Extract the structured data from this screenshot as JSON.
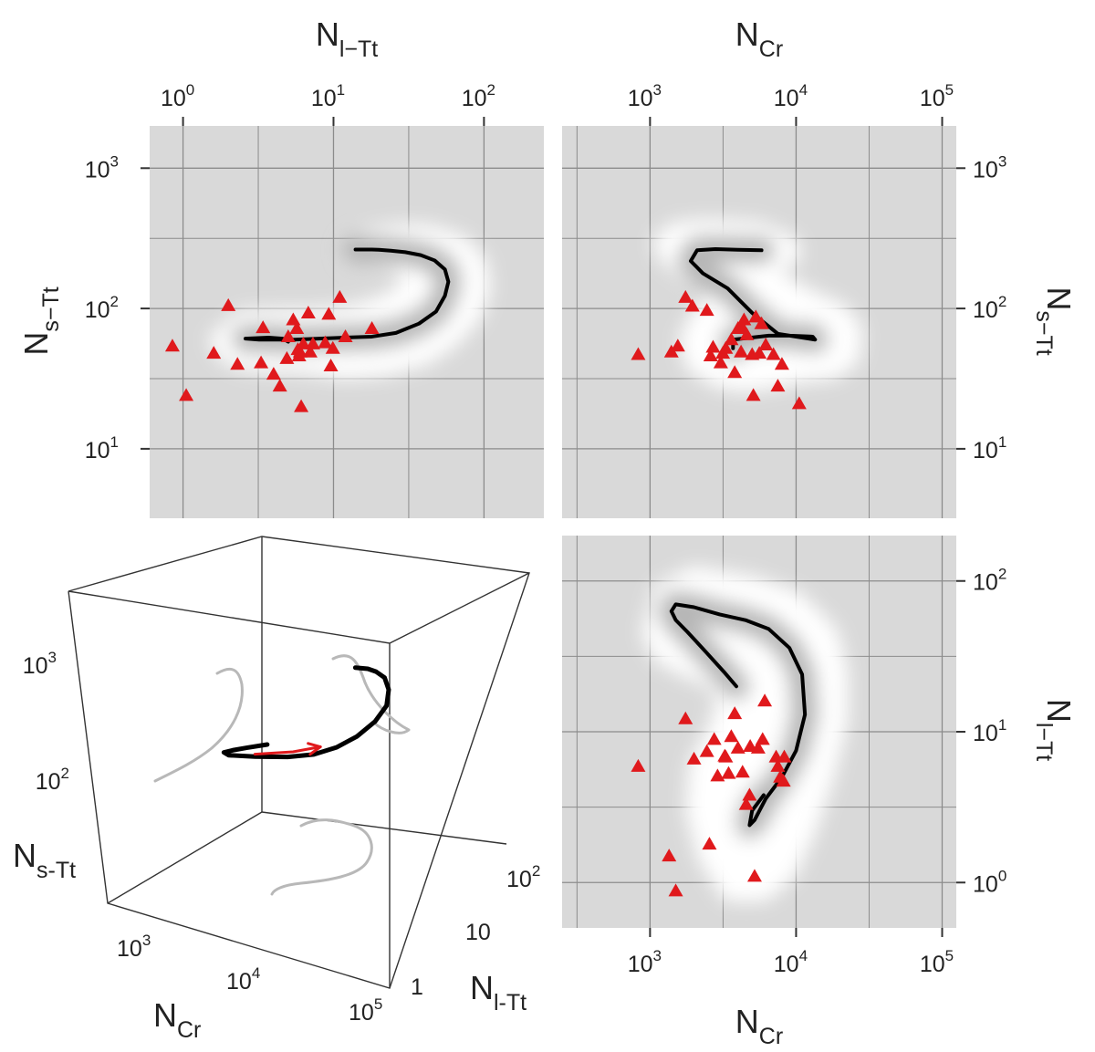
{
  "figure": {
    "panels": {
      "top_left": {
        "top_title": {
          "main": "N",
          "sub": "l−Tt"
        },
        "left_title": {
          "main": "N",
          "sub": "s−Tt"
        }
      },
      "top_right": {
        "top_title": {
          "main": "N",
          "sub": "Cr"
        },
        "right_title": {
          "main": "N",
          "sub": "s−Tt"
        }
      },
      "bottom_right": {
        "bottom_title": {
          "main": "N",
          "sub": "Cr"
        },
        "right_title": {
          "main": "N",
          "sub": "l−Tt"
        }
      },
      "cube": {
        "vertical_axis": {
          "main": "N",
          "sub": "s-Tt",
          "ticks": [
            {
              "base": "10",
              "exp": "3"
            },
            {
              "base": "10",
              "exp": "2"
            }
          ]
        },
        "left_axis": {
          "main": "N",
          "sub": "Cr",
          "ticks": [
            {
              "base": "10",
              "exp": "3"
            },
            {
              "base": "10",
              "exp": "4"
            },
            {
              "base": "10",
              "exp": "5"
            }
          ]
        },
        "right_axis": {
          "main": "N",
          "sub": "l-Tt",
          "ticks": [
            {
              "base": "1",
              "exp": ""
            },
            {
              "base": "10",
              "exp": ""
            },
            {
              "base": "10",
              "exp": "2"
            }
          ]
        }
      }
    }
  },
  "chart_data": [
    {
      "id": "nlTt_vs_nsTt",
      "type": "scatter",
      "x_label": "N_l−Tt",
      "y_label": "N_s−Tt",
      "x_scale": "log",
      "y_scale": "log",
      "xlim": [
        0.6,
        250
      ],
      "ylim": [
        3.2,
        2000
      ],
      "x_ticks": [
        {
          "base": "10",
          "exp": "0",
          "value": 1
        },
        {
          "base": "10",
          "exp": "1",
          "value": 10
        },
        {
          "base": "10",
          "exp": "2",
          "value": 100
        }
      ],
      "y_ticks": [
        {
          "base": "10",
          "exp": "1",
          "value": 10
        },
        {
          "base": "10",
          "exp": "2",
          "value": 100
        },
        {
          "base": "10",
          "exp": "3",
          "value": 1000
        }
      ],
      "grid": true,
      "background": "#d9d9d9",
      "marker_color": "#e0191c",
      "line_color": "#000000",
      "points": [
        [
          0.85,
          54
        ],
        [
          2.0,
          105
        ],
        [
          1.05,
          24
        ],
        [
          1.6,
          48
        ],
        [
          2.3,
          40
        ],
        [
          3.3,
          41
        ],
        [
          3.4,
          73
        ],
        [
          4.0,
          34
        ],
        [
          4.4,
          28
        ],
        [
          4.9,
          44
        ],
        [
          5.0,
          63
        ],
        [
          5.4,
          83
        ],
        [
          5.7,
          72
        ],
        [
          5.8,
          51
        ],
        [
          5.9,
          46
        ],
        [
          6.0,
          49
        ],
        [
          6.1,
          20
        ],
        [
          6.3,
          56
        ],
        [
          6.8,
          93
        ],
        [
          7.0,
          49
        ],
        [
          7.3,
          56
        ],
        [
          8.8,
          57
        ],
        [
          9.3,
          91
        ],
        [
          9.6,
          39
        ],
        [
          9.9,
          52
        ],
        [
          11,
          120
        ],
        [
          12,
          63
        ],
        [
          18,
          72
        ]
      ],
      "curve": [
        [
          5.0,
          58
        ],
        [
          4.6,
          61
        ],
        [
          3.7,
          62
        ],
        [
          2.6,
          61
        ],
        [
          3.2,
          60
        ],
        [
          4.0,
          60
        ],
        [
          5.5,
          60
        ],
        [
          8,
          61
        ],
        [
          12,
          62
        ],
        [
          18,
          63
        ],
        [
          26,
          67
        ],
        [
          37,
          78
        ],
        [
          48,
          95
        ],
        [
          55,
          123
        ],
        [
          58,
          155
        ],
        [
          55,
          190
        ],
        [
          47,
          220
        ],
        [
          38,
          240
        ],
        [
          30,
          252
        ],
        [
          24,
          258
        ],
        [
          20,
          262
        ],
        [
          18,
          263
        ],
        [
          14,
          263
        ]
      ],
      "band": [
        [
          1.7,
          60
        ],
        [
          2.5,
          84
        ],
        [
          4,
          86
        ],
        [
          8,
          87
        ],
        [
          14,
          93
        ],
        [
          22,
          109
        ],
        [
          30,
          133
        ],
        [
          33,
          172
        ],
        [
          26,
          220
        ],
        [
          18,
          238
        ],
        [
          13,
          242
        ],
        [
          13,
          280
        ],
        [
          19,
          328
        ],
        [
          30,
          350
        ],
        [
          45,
          340
        ],
        [
          70,
          290
        ],
        [
          92,
          210
        ],
        [
          98,
          140
        ],
        [
          85,
          90
        ],
        [
          60,
          60
        ],
        [
          40,
          45
        ],
        [
          22,
          38
        ],
        [
          12,
          36
        ],
        [
          6,
          40
        ],
        [
          4,
          40
        ],
        [
          2.5,
          42
        ],
        [
          1.9,
          48
        ]
      ]
    },
    {
      "id": "nCr_vs_nsTt",
      "type": "scatter",
      "x_label": "N_Cr",
      "y_label": "N_s−Tt",
      "x_scale": "log",
      "y_scale": "log",
      "xlim": [
        250,
        125000
      ],
      "ylim": [
        3.2,
        2000
      ],
      "x_ticks": [
        {
          "base": "10",
          "exp": "3",
          "value": 1000
        },
        {
          "base": "10",
          "exp": "4",
          "value": 10000
        },
        {
          "base": "10",
          "exp": "5",
          "value": 100000
        }
      ],
      "y_ticks": [
        {
          "base": "10",
          "exp": "1",
          "value": 10
        },
        {
          "base": "10",
          "exp": "2",
          "value": 100
        },
        {
          "base": "10",
          "exp": "3",
          "value": 1000
        }
      ],
      "grid": true,
      "background": "#d9d9d9",
      "marker_color": "#e0191c",
      "line_color": "#000000",
      "points": [
        [
          830,
          47
        ],
        [
          1400,
          49
        ],
        [
          1550,
          54
        ],
        [
          1750,
          120
        ],
        [
          1950,
          104
        ],
        [
          2450,
          97
        ],
        [
          2600,
          46
        ],
        [
          2700,
          53
        ],
        [
          3050,
          41
        ],
        [
          3150,
          48
        ],
        [
          3300,
          52
        ],
        [
          3600,
          60
        ],
        [
          3800,
          35
        ],
        [
          4000,
          72
        ],
        [
          4200,
          49
        ],
        [
          4300,
          73
        ],
        [
          4400,
          83
        ],
        [
          4600,
          65
        ],
        [
          5000,
          47
        ],
        [
          5100,
          24
        ],
        [
          5300,
          87
        ],
        [
          5600,
          48
        ],
        [
          5800,
          78
        ],
        [
          6200,
          55
        ],
        [
          7000,
          47
        ],
        [
          7500,
          28
        ],
        [
          8000,
          40
        ],
        [
          10500,
          21
        ]
      ],
      "curve": [
        [
          3700,
          52
        ],
        [
          3700,
          60
        ],
        [
          6500,
          64
        ],
        [
          9000,
          64
        ],
        [
          13000,
          63
        ],
        [
          13500,
          60
        ],
        [
          7500,
          66
        ],
        [
          5000,
          93
        ],
        [
          3400,
          139
        ],
        [
          2300,
          178
        ],
        [
          1900,
          218
        ],
        [
          2100,
          260
        ],
        [
          2800,
          265
        ],
        [
          4000,
          262
        ],
        [
          5800,
          260
        ]
      ],
      "band": [
        [
          1200,
          300
        ],
        [
          1500,
          360
        ],
        [
          2500,
          380
        ],
        [
          5500,
          360
        ],
        [
          9000,
          290
        ],
        [
          9500,
          240
        ],
        [
          7000,
          210
        ],
        [
          6800,
          170
        ],
        [
          12000,
          120
        ],
        [
          20000,
          95
        ],
        [
          25000,
          70
        ],
        [
          24000,
          45
        ],
        [
          18000,
          36
        ],
        [
          11000,
          34
        ],
        [
          7000,
          31
        ],
        [
          4500,
          29
        ],
        [
          3000,
          31
        ],
        [
          2000,
          40
        ],
        [
          1800,
          60
        ],
        [
          2200,
          90
        ],
        [
          3000,
          115
        ],
        [
          2500,
          150
        ],
        [
          1700,
          190
        ],
        [
          1300,
          240
        ]
      ]
    },
    {
      "id": "nCr_vs_nlTt",
      "type": "scatter",
      "x_label": "N_Cr",
      "y_label": "N_l−Tt",
      "x_scale": "log",
      "y_scale": "log",
      "xlim": [
        250,
        125000
      ],
      "ylim": [
        0.5,
        200
      ],
      "x_ticks": [
        {
          "base": "10",
          "exp": "3",
          "value": 1000
        },
        {
          "base": "10",
          "exp": "4",
          "value": 10000
        },
        {
          "base": "10",
          "exp": "5",
          "value": 100000
        }
      ],
      "y_ticks": [
        {
          "base": "10",
          "exp": "0",
          "value": 1
        },
        {
          "base": "10",
          "exp": "1",
          "value": 10
        },
        {
          "base": "10",
          "exp": "2",
          "value": 100
        }
      ],
      "grid": true,
      "background": "#d9d9d9",
      "marker_color": "#e0191c",
      "line_color": "#000000",
      "points": [
        [
          830,
          5.9
        ],
        [
          1350,
          1.5
        ],
        [
          1500,
          0.88
        ],
        [
          1750,
          12.2
        ],
        [
          2000,
          6.6
        ],
        [
          2450,
          7.4
        ],
        [
          2550,
          1.8
        ],
        [
          2750,
          8.9
        ],
        [
          2900,
          5.1
        ],
        [
          3250,
          6.9
        ],
        [
          3300,
          6.8
        ],
        [
          3450,
          5.3
        ],
        [
          3600,
          9.3
        ],
        [
          3800,
          13.2
        ],
        [
          4000,
          7.8
        ],
        [
          4300,
          5.4
        ],
        [
          4550,
          3.3
        ],
        [
          4800,
          3.8
        ],
        [
          4850,
          8.0
        ],
        [
          5200,
          1.1
        ],
        [
          5500,
          7.8
        ],
        [
          5900,
          8.9
        ],
        [
          6100,
          16.0
        ],
        [
          7300,
          6.8
        ],
        [
          7500,
          5.9
        ],
        [
          7800,
          5.0
        ],
        [
          8200,
          4.7
        ],
        [
          8300,
          6.8
        ]
      ],
      "curve": [
        [
          3900,
          20
        ],
        [
          3200,
          25
        ],
        [
          2400,
          34
        ],
        [
          1800,
          46
        ],
        [
          1500,
          55
        ],
        [
          1400,
          63
        ],
        [
          1500,
          70
        ],
        [
          2000,
          67
        ],
        [
          3000,
          60
        ],
        [
          4500,
          55
        ],
        [
          6500,
          48
        ],
        [
          9000,
          36
        ],
        [
          11000,
          24
        ],
        [
          11500,
          13
        ],
        [
          10000,
          7.5
        ],
        [
          8000,
          5.0
        ],
        [
          6200,
          3.6
        ],
        [
          5200,
          2.6
        ],
        [
          4800,
          2.4
        ],
        [
          5000,
          3.0
        ],
        [
          6000,
          3.8
        ]
      ],
      "band": [
        [
          1000,
          45
        ],
        [
          1200,
          85
        ],
        [
          2000,
          110
        ],
        [
          5000,
          95
        ],
        [
          10000,
          75
        ],
        [
          17000,
          45
        ],
        [
          20000,
          25
        ],
        [
          20000,
          12
        ],
        [
          16000,
          5
        ],
        [
          12000,
          2.2
        ],
        [
          9000,
          1.2
        ],
        [
          6000,
          0.85
        ],
        [
          3500,
          0.85
        ],
        [
          2400,
          1.5
        ],
        [
          2000,
          3
        ],
        [
          2100,
          6
        ],
        [
          2800,
          10
        ],
        [
          3300,
          16
        ],
        [
          2800,
          22
        ],
        [
          1800,
          26
        ],
        [
          1200,
          32
        ]
      ]
    },
    {
      "id": "cube_3d",
      "type": "line",
      "axes": [
        "N_Cr",
        "N_l-Tt",
        "N_s-Tt"
      ],
      "scale": "log",
      "ranges": {
        "N_Cr": [
          300,
          100000
        ],
        "N_l-Tt": [
          0.6,
          250
        ],
        "N_s-Tt": [
          3.2,
          2000
        ]
      },
      "line_color": "#000000",
      "projection_color": "#b8b8b8",
      "arrow_color": "#e0191c",
      "trajectory": [
        [
          5500,
          4.6,
          58
        ],
        [
          8000,
          3.6,
          60
        ],
        [
          10500,
          3.0,
          61
        ],
        [
          12500,
          2.7,
          61
        ],
        [
          13500,
          3.2,
          60
        ],
        [
          13000,
          6,
          62
        ],
        [
          11000,
          12,
          63
        ],
        [
          9000,
          20,
          66
        ],
        [
          7000,
          30,
          75
        ],
        [
          5500,
          42,
          92
        ],
        [
          4200,
          55,
          122
        ],
        [
          3100,
          60,
          160
        ],
        [
          2300,
          52,
          205
        ],
        [
          1800,
          40,
          240
        ],
        [
          1600,
          30,
          255
        ],
        [
          1550,
          24,
          262
        ],
        [
          1600,
          18,
          263
        ]
      ],
      "arrow": [
        [
          11500,
          5.5,
          62
        ],
        [
          9000,
          12,
          66
        ],
        [
          7000,
          20,
          72
        ]
      ]
    }
  ]
}
